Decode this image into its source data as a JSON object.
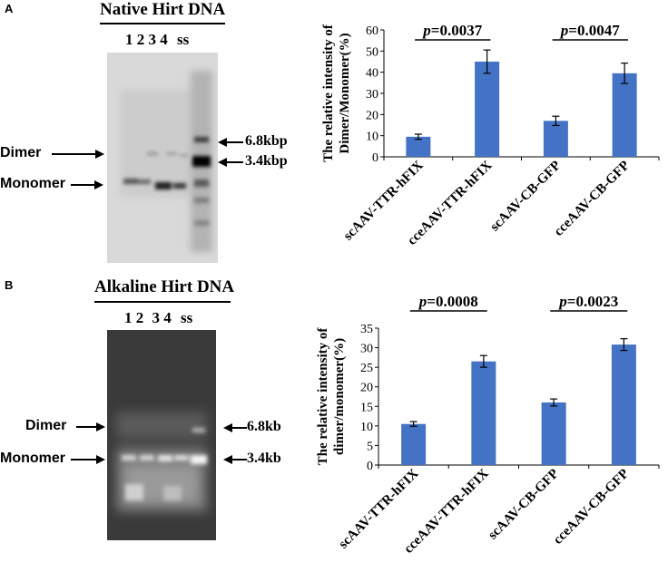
{
  "panels": [
    {
      "letter": "A",
      "blot": {
        "title": "Native Hirt DNA",
        "lanes": [
          "1",
          "2",
          "3",
          "4",
          "ss"
        ],
        "left_labels": [
          "Dimer",
          "Monomer"
        ],
        "right_labels": [
          "6.8kbp",
          "3.4kbp"
        ]
      }
    },
    {
      "letter": "B",
      "blot": {
        "title": "Alkaline Hirt DNA",
        "lanes": [
          "1",
          "2",
          "3",
          "4",
          "ss"
        ],
        "left_labels": [
          "Dimer",
          "Monomer"
        ],
        "right_labels": [
          "6.8kb",
          "3.4kb"
        ]
      }
    }
  ],
  "bar_color": "#4472C4",
  "chart_data": [
    {
      "type": "bar",
      "categories": [
        "scAAV-TTR-hFIX",
        "cceAAV-TTR-hFIX",
        "scAAV-CB-GFP",
        "cceAAV-CB-GFP"
      ],
      "values": [
        9.5,
        45,
        17,
        39.5
      ],
      "errors": [
        1.2,
        5.5,
        2.2,
        4.8
      ],
      "ylabel": [
        "The relative intensity of",
        "Dimer/Monomer(%)"
      ],
      "ylim": [
        0,
        60
      ],
      "yticks": [
        0,
        10,
        20,
        30,
        40,
        50,
        60
      ],
      "annotations": [
        "p=0.0037",
        "p=0.0047"
      ],
      "grid": false
    },
    {
      "type": "bar",
      "categories": [
        "scAAV-TTR-hFIX",
        "cceAAV-TTR-hFIX",
        "scAAV-CB-GFP",
        "cceAAV-CB-GFP"
      ],
      "values": [
        10.5,
        26.5,
        16,
        30.8
      ],
      "errors": [
        0.6,
        1.5,
        0.9,
        1.5
      ],
      "ylabel": [
        "The relative intensity of",
        "dimer/monomer(%)"
      ],
      "ylim": [
        0,
        35
      ],
      "yticks": [
        0,
        5,
        10,
        15,
        20,
        25,
        30,
        35
      ],
      "annotations": [
        "p=0.0008",
        "p=0.0023"
      ],
      "grid": false
    }
  ]
}
